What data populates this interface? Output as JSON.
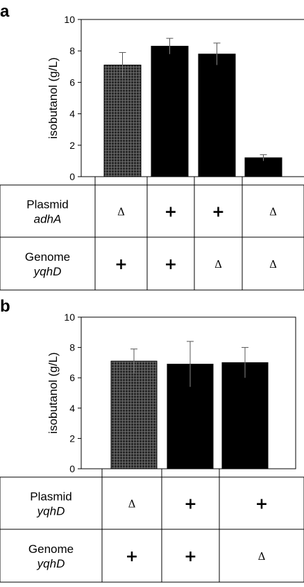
{
  "chart_data": [
    {
      "panel": "a",
      "type": "bar",
      "ylabel": "isobutanol (g/L)",
      "ylim": [
        0,
        10
      ],
      "yticks": [
        0,
        2,
        4,
        6,
        8,
        10
      ],
      "values": [
        7.1,
        8.3,
        7.8,
        1.2
      ],
      "errors": [
        0.8,
        0.5,
        0.7,
        0.2
      ],
      "bar_styles": [
        "hatched",
        "solid",
        "solid",
        "solid"
      ],
      "table": {
        "rows": [
          {
            "label": "Plasmid",
            "gene": "adhA",
            "cells": [
              "Δ",
              "+",
              "+",
              "Δ"
            ]
          },
          {
            "label": "Genome",
            "gene": "yqhD",
            "cells": [
              "+",
              "+",
              "Δ",
              "Δ"
            ]
          }
        ]
      }
    },
    {
      "panel": "b",
      "type": "bar",
      "ylabel": "isobutanol (g/L)",
      "ylim": [
        0,
        10
      ],
      "yticks": [
        0,
        2,
        4,
        6,
        8,
        10
      ],
      "values": [
        7.1,
        6.9,
        7.0
      ],
      "errors": [
        0.8,
        1.5,
        1.0
      ],
      "bar_styles": [
        "hatched",
        "solid",
        "solid"
      ],
      "table": {
        "rows": [
          {
            "label": "Plasmid",
            "gene": "yqhD",
            "cells": [
              "Δ",
              "+",
              "+"
            ]
          },
          {
            "label": "Genome",
            "gene": "yqhD",
            "cells": [
              "+",
              "+",
              "Δ"
            ]
          }
        ]
      }
    }
  ],
  "colors": {
    "bar": "#000000",
    "hatch_bg": "#2a2a2a",
    "hatch_line": "#777777"
  }
}
